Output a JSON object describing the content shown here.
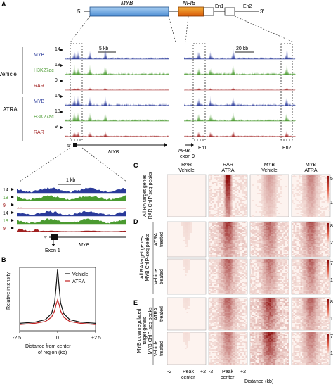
{
  "panels": {
    "A": "A",
    "B": "B",
    "C": "C",
    "D": "D",
    "E": "E"
  },
  "gene_map": {
    "five_prime": "5'",
    "three_prime": "3'",
    "myb": "MYB",
    "nfib": "NFIB",
    "en1": "En1",
    "en2": "En2",
    "myb_color": "#6aa8e0",
    "nfib_color": "#e87a10"
  },
  "scale": {
    "left": "5 kb",
    "right": "20 kb",
    "zoom": "1 kb"
  },
  "groups": {
    "vehicle": "Vehicle",
    "atra": "ATRA"
  },
  "tracks": [
    {
      "name": "MYB",
      "max": "14",
      "color": "#2a3a9a"
    },
    {
      "name": "H3K27ac",
      "max": "18",
      "color": "#4a9a30"
    },
    {
      "name": "RAR",
      "max": "9",
      "color": "#a02020"
    },
    {
      "name": "MYB",
      "max": "14",
      "color": "#2a3a9a"
    },
    {
      "name": "H3K27ac",
      "max": "18",
      "color": "#4a9a30"
    },
    {
      "name": "RAR",
      "max": "9",
      "color": "#a02020"
    }
  ],
  "genome_labels": {
    "five_prime": "5'",
    "myb": "MYB",
    "nfib": "NFIB,",
    "exon9": "exon 9",
    "en1": "En1",
    "en2": "En2",
    "exon1": "Exon 1",
    "zoom_myb": "MYB",
    "zoom_five": "5'"
  },
  "chart_data": {
    "type": "line",
    "ylabel": "Relative intensity",
    "xlabel": "Distance from center of region (kb)",
    "x_ticks": [
      "-2.5",
      "0",
      "+2.5"
    ],
    "xlim": [
      -2.5,
      2.5
    ],
    "series": [
      {
        "name": "Vehicle",
        "color": "#111111",
        "x": [
          -2.5,
          -1.5,
          -0.8,
          -0.4,
          -0.2,
          -0.1,
          0,
          0.1,
          0.2,
          0.4,
          0.8,
          1.5,
          2.5
        ],
        "y": [
          0.12,
          0.14,
          0.18,
          0.28,
          0.45,
          0.7,
          1.0,
          0.7,
          0.45,
          0.28,
          0.18,
          0.14,
          0.12
        ]
      },
      {
        "name": "ATRA",
        "color": "#c02020",
        "x": [
          -2.5,
          -1.5,
          -0.8,
          -0.4,
          -0.2,
          -0.1,
          0,
          0.1,
          0.2,
          0.4,
          0.8,
          1.5,
          2.5
        ],
        "y": [
          0.1,
          0.12,
          0.15,
          0.22,
          0.32,
          0.42,
          0.5,
          0.42,
          0.32,
          0.22,
          0.15,
          0.12,
          0.1
        ]
      }
    ]
  },
  "heatmap": {
    "col_headers": [
      [
        "RAR",
        "Vehicle"
      ],
      [
        "RAR",
        "ATRA"
      ],
      [
        "MYB",
        "Vehicle"
      ],
      [
        "MYB",
        "ATRA"
      ]
    ],
    "row_c_label": [
      "All RA target genes",
      "RAR ChIP-seq peaks"
    ],
    "row_d_label": [
      "All RA target genes",
      "MYB ChIP-seq peaks"
    ],
    "row_e_label": [
      "MYB downregulated",
      "target genes",
      "MYB ChIP-seq peaks"
    ],
    "atra_treated": [
      "ATRA",
      "treated"
    ],
    "vehicle_treated": [
      "Vehicle",
      "treated"
    ],
    "scale_c": [
      "5",
      "1"
    ],
    "scale_d": [
      "8",
      "2",
      "7",
      "1"
    ],
    "scale_e": [
      "8",
      "1",
      "7",
      "1"
    ],
    "x_ticks": [
      "-2",
      "+2",
      "-2",
      "+2"
    ],
    "peak_center": [
      "Peak",
      "center"
    ],
    "distance": "Distance (kb)"
  }
}
